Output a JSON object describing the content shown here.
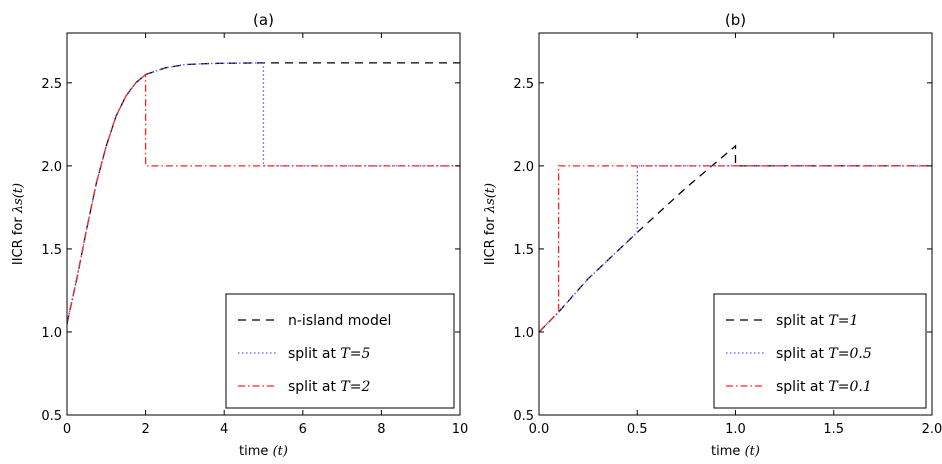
{
  "chart_data": [
    {
      "type": "line",
      "title": "(a)",
      "xlabel": "time",
      "xlabel_var": "(t)",
      "ylabel": "IICR for",
      "ylabel_var": "λs(t)",
      "xlim": [
        0,
        10
      ],
      "ylim": [
        0.5,
        2.8
      ],
      "xticks": [
        0,
        2,
        4,
        6,
        8,
        10
      ],
      "xtick_labels": [
        "0",
        "2",
        "4",
        "6",
        "8",
        "10"
      ],
      "yticks": [
        0.5,
        1.0,
        1.5,
        2.0,
        2.5
      ],
      "ytick_labels": [
        "0.5",
        "1.0",
        "1.5",
        "2.0",
        "2.5"
      ],
      "legend_position": "bottom-right",
      "series": [
        {
          "name": "n-island model",
          "legend_text": "n-island model",
          "color": "#000000",
          "dash": "8,6",
          "x": [
            0,
            0.25,
            0.5,
            0.75,
            1.0,
            1.25,
            1.5,
            1.75,
            2.0,
            2.5,
            3.0,
            3.5,
            4.0,
            5.0,
            6.0,
            8.0,
            10.0
          ],
          "y": [
            1.05,
            1.32,
            1.62,
            1.9,
            2.12,
            2.3,
            2.42,
            2.5,
            2.55,
            2.59,
            2.61,
            2.615,
            2.618,
            2.62,
            2.62,
            2.62,
            2.62
          ]
        },
        {
          "name": "split at T=5",
          "legend_text": "split at ",
          "legend_math": "T=5",
          "color": "#5555ff",
          "dash": "1.5,2.5",
          "x": [
            0,
            0.25,
            0.5,
            0.75,
            1.0,
            1.25,
            1.5,
            1.75,
            2.0,
            2.5,
            3.0,
            3.5,
            4.0,
            5.0,
            5.0,
            6.0,
            8.0,
            10.0
          ],
          "y": [
            1.05,
            1.32,
            1.62,
            1.9,
            2.12,
            2.3,
            2.42,
            2.5,
            2.55,
            2.59,
            2.61,
            2.615,
            2.618,
            2.62,
            2.0,
            2.0,
            2.0,
            2.0
          ]
        },
        {
          "name": "split at T=2",
          "legend_text": "split at ",
          "legend_math": "T=2",
          "color": "#ff2222",
          "dash": "7,3,1.5,3",
          "x": [
            0,
            0.25,
            0.5,
            0.75,
            1.0,
            1.25,
            1.5,
            1.75,
            2.0,
            2.0,
            4.0,
            6.0,
            8.0,
            10.0
          ],
          "y": [
            1.05,
            1.32,
            1.62,
            1.9,
            2.12,
            2.3,
            2.42,
            2.5,
            2.55,
            2.0,
            2.0,
            2.0,
            2.0,
            2.0
          ]
        }
      ]
    },
    {
      "type": "line",
      "title": "(b)",
      "xlabel": "time",
      "xlabel_var": "(t)",
      "ylabel": "IICR for",
      "ylabel_var": "λs(t)",
      "xlim": [
        0,
        2.0
      ],
      "ylim": [
        0.5,
        2.8
      ],
      "xticks": [
        0.0,
        0.5,
        1.0,
        1.5,
        2.0
      ],
      "xtick_labels": [
        "0.0",
        "0.5",
        "1.0",
        "1.5",
        "2.0"
      ],
      "yticks": [
        0.5,
        1.0,
        1.5,
        2.0,
        2.5
      ],
      "ytick_labels": [
        "0.5",
        "1.0",
        "1.5",
        "2.0",
        "2.5"
      ],
      "legend_position": "bottom-right",
      "series": [
        {
          "name": "split at T=1",
          "legend_text": "split at ",
          "legend_math": "T=1",
          "color": "#000000",
          "dash": "8,6",
          "x": [
            0,
            0.1,
            0.25,
            0.5,
            0.75,
            1.0,
            1.0,
            1.5,
            2.0
          ],
          "y": [
            1.0,
            1.12,
            1.32,
            1.6,
            1.87,
            2.12,
            2.0,
            2.0,
            2.0
          ]
        },
        {
          "name": "split at T=0.5",
          "legend_text": "split at ",
          "legend_math": "T=0.5",
          "color": "#5555ff",
          "dash": "1.5,2.5",
          "x": [
            0,
            0.1,
            0.25,
            0.5,
            0.5,
            1.0,
            1.5,
            2.0
          ],
          "y": [
            1.0,
            1.12,
            1.32,
            1.6,
            2.0,
            2.0,
            2.0,
            2.0
          ]
        },
        {
          "name": "split at T=0.1",
          "legend_text": "split at ",
          "legend_math": "T=0.1",
          "color": "#ff2222",
          "dash": "7,3,1.5,3",
          "x": [
            0,
            0.1,
            0.1,
            0.5,
            1.0,
            1.5,
            2.0
          ],
          "y": [
            1.0,
            1.12,
            2.0,
            2.0,
            2.0,
            2.0,
            2.0
          ]
        }
      ]
    }
  ]
}
